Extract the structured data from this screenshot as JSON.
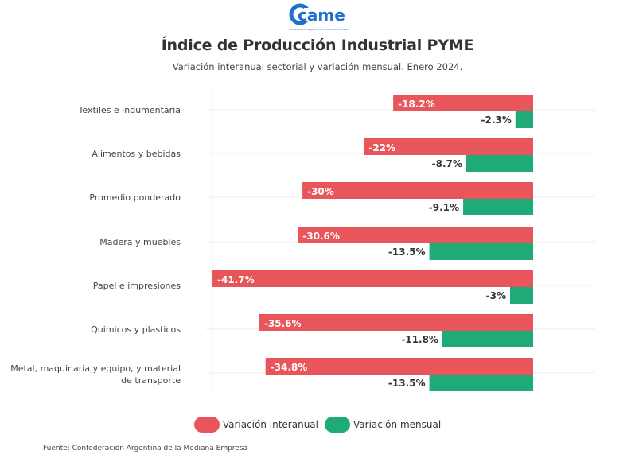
{
  "logo": {
    "text": "came",
    "tagline": "Confederación Argentina de la Mediana Empresa",
    "color": "#1f6fd1"
  },
  "title": "Índice de Producción Industrial PYME",
  "subtitle": "Variación interanual sectorial y variación mensual. Enero 2024.",
  "source": "Fuente: Confederación Argentina de la Mediana Empresa",
  "colors": {
    "interanual": "#e8555a",
    "mensual": "#1eab78"
  },
  "chart_data": {
    "type": "bar",
    "orientation": "horizontal",
    "title": "Índice de Producción Industrial PYME",
    "subtitle": "Variación interanual sectorial y variación mensual. Enero 2024.",
    "xlabel": "",
    "ylabel": "",
    "xlim": [
      -41.7,
      0
    ],
    "grid": true,
    "legend_position": "bottom",
    "categories": [
      "Textiles e indumentaria",
      "Alimentos y bebidas",
      "Promedio ponderado",
      "Madera y muebles",
      "Papel e impresiones",
      "Quimicos y plasticos",
      "Metal, maquinaria y equipo, y material de transporte"
    ],
    "category_lines": [
      [
        "Textiles e indumentaria"
      ],
      [
        "Alimentos y bebidas"
      ],
      [
        "Promedio ponderado"
      ],
      [
        "Madera y muebles"
      ],
      [
        "Papel e impresiones"
      ],
      [
        "Quimicos y plasticos"
      ],
      [
        "Metal, maquinaria y equipo, y material",
        "de transporte"
      ]
    ],
    "series": [
      {
        "name": "Variación interanual",
        "color": "#e8555a",
        "values": [
          -18.2,
          -22,
          -30,
          -30.6,
          -41.7,
          -35.6,
          -34.8
        ],
        "labels": [
          "-18.2%",
          "-22%",
          "-30%",
          "-30.6%",
          "-41.7%",
          "-35.6%",
          "-34.8%"
        ]
      },
      {
        "name": "Variación mensual",
        "color": "#1eab78",
        "values": [
          -2.3,
          -8.7,
          -9.1,
          -13.5,
          -3,
          -11.8,
          -13.5
        ],
        "labels": [
          "-2.3%",
          "-8.7%",
          "-9.1%",
          "-13.5%",
          "-3%",
          "-11.8%",
          "-13.5%"
        ]
      }
    ]
  }
}
